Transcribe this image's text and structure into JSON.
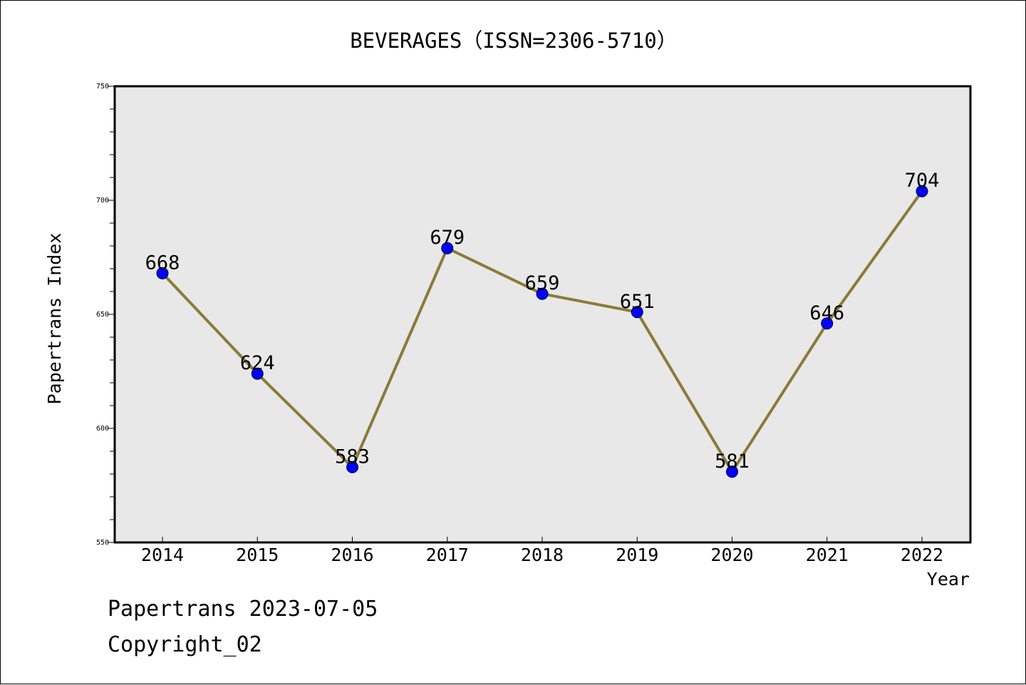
{
  "chart_data": {
    "type": "line",
    "title": "BEVERAGES（ISSN=2306-5710）",
    "xlabel": "Year",
    "ylabel": "Papertrans Index",
    "categories": [
      "2014",
      "2015",
      "2016",
      "2017",
      "2018",
      "2019",
      "2020",
      "2021",
      "2022"
    ],
    "series": [
      {
        "values": [
          668,
          624,
          583,
          679,
          659,
          651,
          581,
          646,
          704
        ]
      }
    ],
    "data_labels": [
      "668",
      "624",
      "583",
      "679",
      "659",
      "651",
      "581",
      "646",
      "704"
    ],
    "ylim": [
      550,
      750
    ],
    "yticks": [
      "550",
      "600",
      "650",
      "700",
      "750"
    ],
    "grid": false,
    "legend": "none",
    "colors": {
      "line": "#8B7A3A",
      "marker": "#0000FF",
      "plot_background": "#E8E8E8",
      "axis": "#000000"
    }
  },
  "footer": {
    "line1": "Papertrans 2023-07-05",
    "line2": "Copyright_02"
  }
}
